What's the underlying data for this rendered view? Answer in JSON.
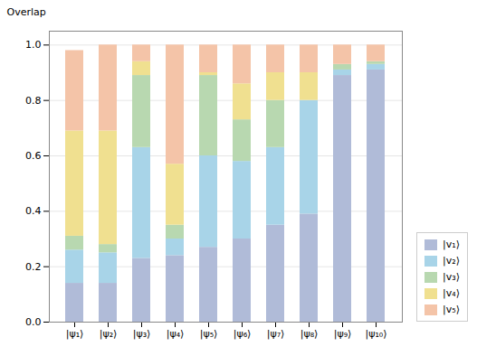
{
  "chart_data": {
    "type": "bar",
    "stacked": true,
    "ylabel": "Overlap",
    "categories": [
      "|ψ₁⟩",
      "|ψ₂⟩",
      "|ψ₃⟩",
      "|ψ₄⟩",
      "|ψ₅⟩",
      "|ψ₆⟩",
      "|ψ₇⟩",
      "|ψ₈⟩",
      "|ψ₉⟩",
      "|ψ₁₀⟩"
    ],
    "series": [
      {
        "name": "|v₁⟩",
        "color": "#b0bbd8",
        "values": [
          0.14,
          0.14,
          0.23,
          0.24,
          0.27,
          0.3,
          0.35,
          0.39,
          0.89,
          0.91
        ]
      },
      {
        "name": "|v₂⟩",
        "color": "#a8d4e8",
        "values": [
          0.12,
          0.11,
          0.4,
          0.06,
          0.33,
          0.28,
          0.28,
          0.41,
          0.02,
          0.02
        ]
      },
      {
        "name": "|v₃⟩",
        "color": "#b8d8b0",
        "values": [
          0.05,
          0.03,
          0.26,
          0.05,
          0.29,
          0.15,
          0.17,
          0.0,
          0.02,
          0.01
        ]
      },
      {
        "name": "|v₄⟩",
        "color": "#f0e090",
        "values": [
          0.38,
          0.41,
          0.05,
          0.22,
          0.01,
          0.13,
          0.1,
          0.1,
          0.0,
          0.0
        ]
      },
      {
        "name": "|v₅⟩",
        "color": "#f4c4a8",
        "values": [
          0.29,
          0.31,
          0.06,
          0.43,
          0.1,
          0.14,
          0.1,
          0.1,
          0.07,
          0.06
        ]
      }
    ],
    "ylim": [
      0.0,
      1.05
    ],
    "yticks": [
      {
        "value": 0,
        "label": "0.0"
      },
      0.2,
      0.4,
      0.6,
      0.8,
      {
        "value": 1,
        "label": "1.0"
      }
    ],
    "grid": true,
    "legend": "lower right"
  }
}
